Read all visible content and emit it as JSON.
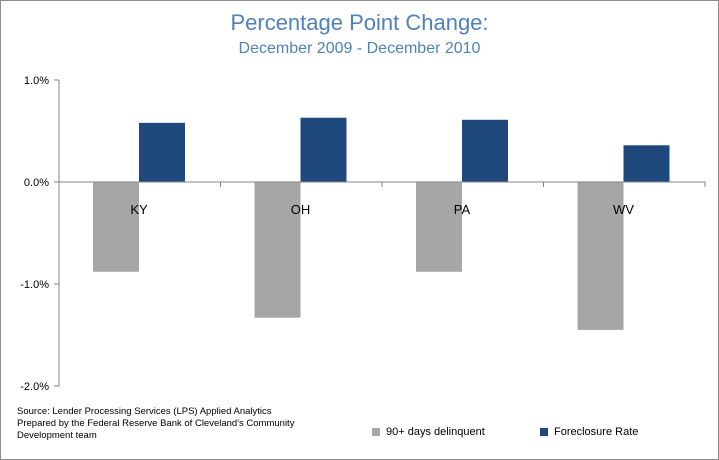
{
  "chart_data": {
    "type": "bar",
    "title": "Percentage Point Change:",
    "subtitle": "December 2009 - December 2010",
    "categories": [
      "KY",
      "OH",
      "PA",
      "WV"
    ],
    "series": [
      {
        "name": "90+ days delinquent",
        "values": [
          -0.88,
          -1.33,
          -0.88,
          -1.45
        ],
        "color": "#a6a6a6"
      },
      {
        "name": "Foreclosure Rate",
        "values": [
          0.58,
          0.63,
          0.61,
          0.36
        ],
        "color": "#1f497d"
      }
    ],
    "ylim": [
      -2.0,
      1.0
    ],
    "yticks": [
      1.0,
      0.0,
      -1.0,
      -2.0
    ],
    "ytick_labels": [
      "1.0%",
      "0.0%",
      "-1.0%",
      "-2.0%"
    ],
    "grid": false,
    "legend_position": "bottom-right"
  },
  "source_note": {
    "line1": "Source: Lender Processing Services (LPS) Applied Analytics",
    "line2": "Prepared by the Federal Reserve Bank of Cleveland's Community",
    "line3": "Development team"
  }
}
